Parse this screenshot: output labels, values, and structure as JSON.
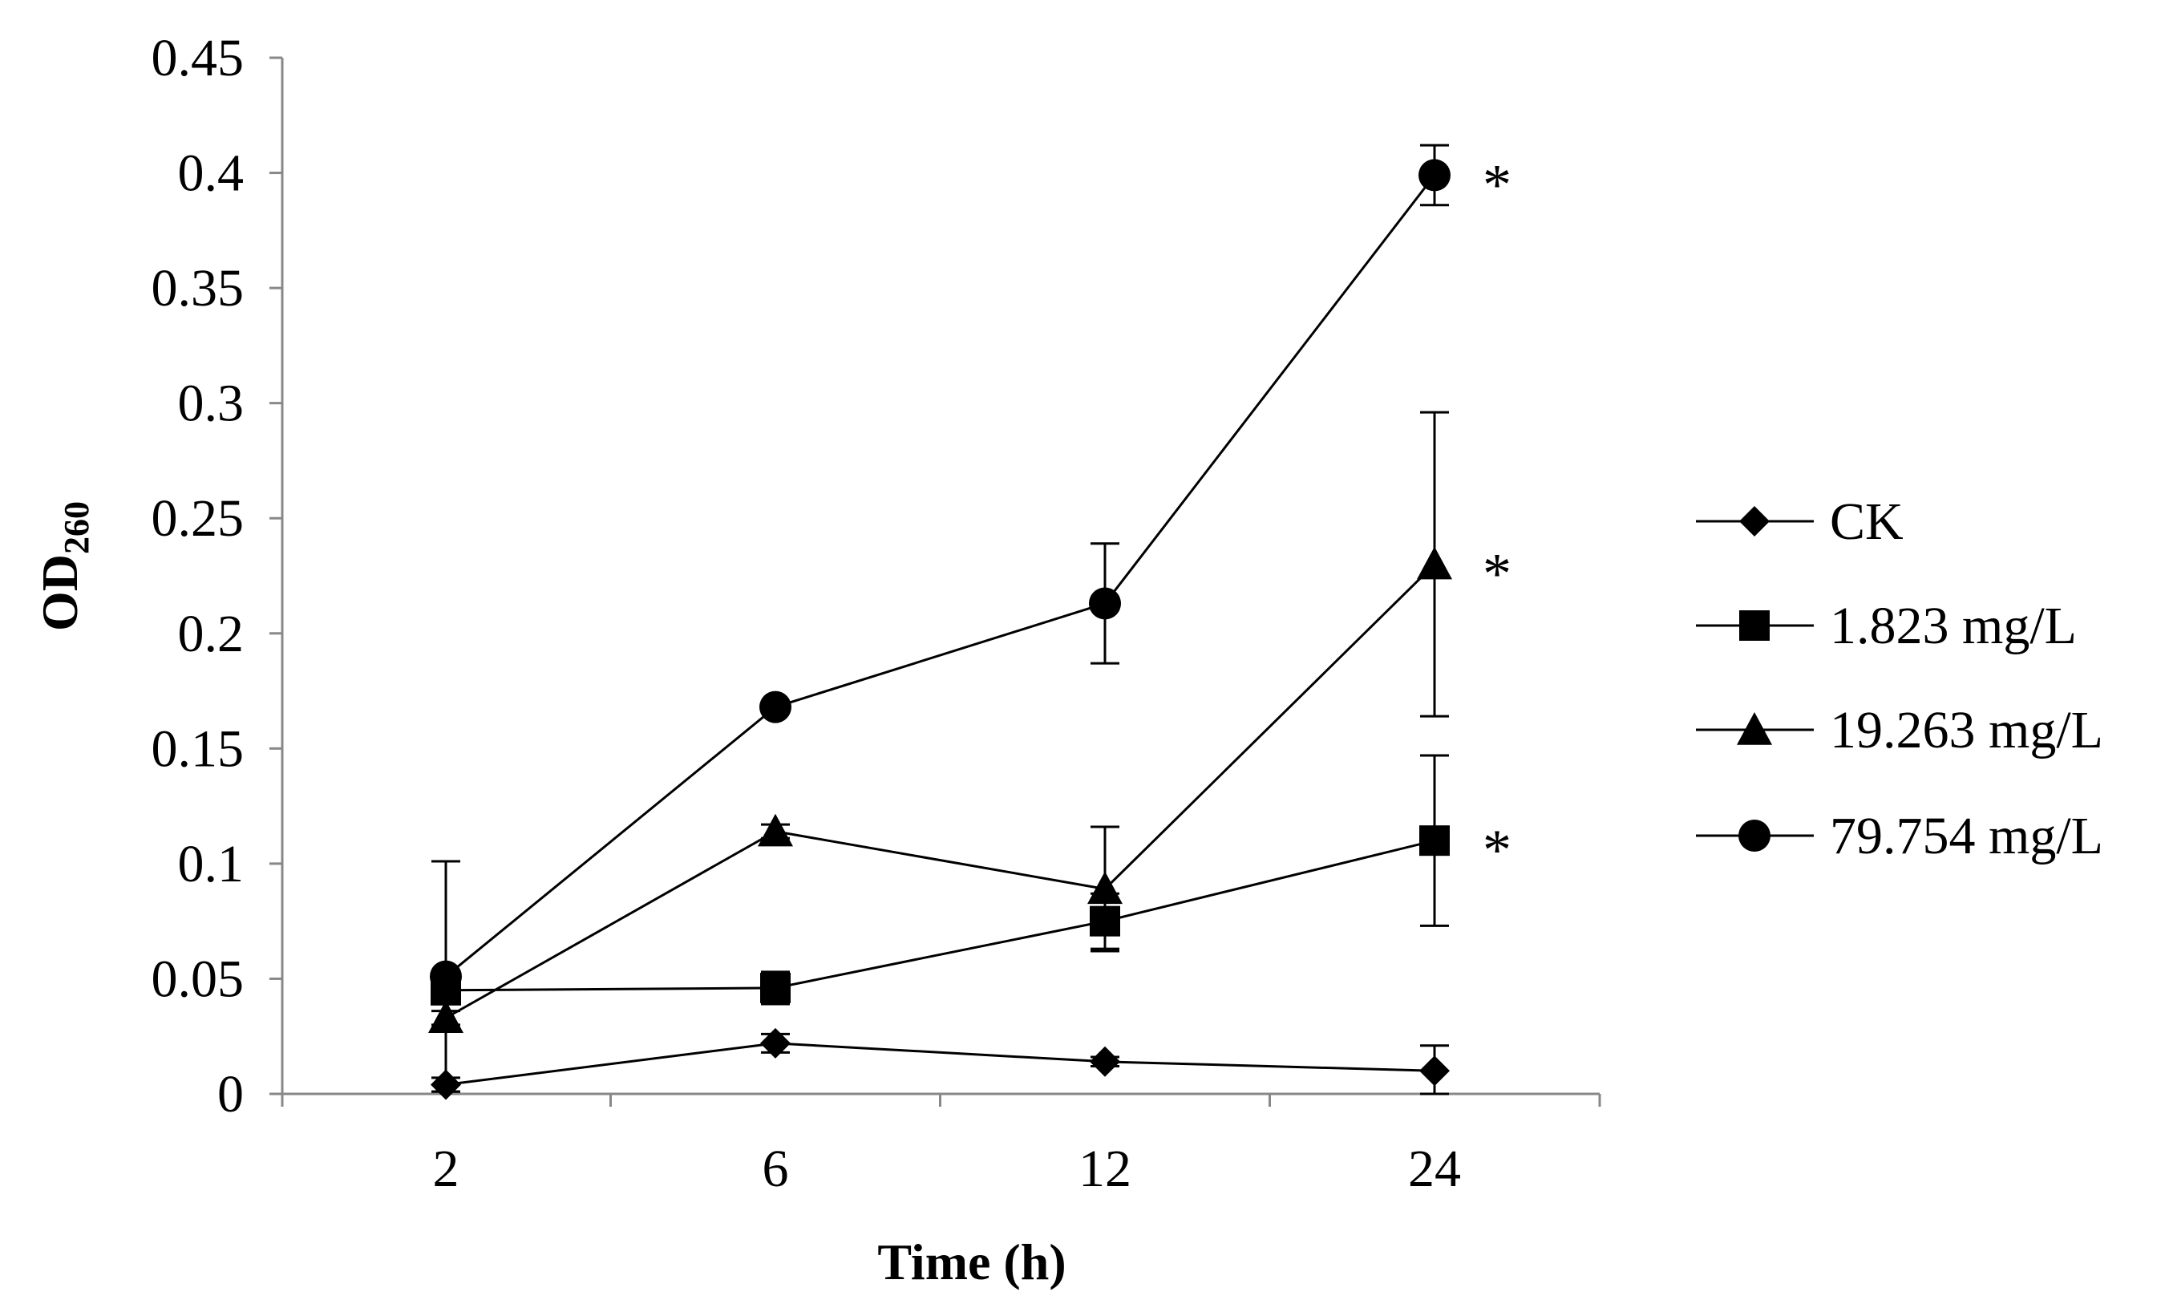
{
  "chart_data": {
    "type": "line",
    "title": "",
    "xlabel": "Time (h)",
    "ylabel_main": "OD",
    "ylabel_sub": "260",
    "categories": [
      "2",
      "6",
      "12",
      "24"
    ],
    "ylim": [
      0,
      0.45
    ],
    "yticks": [
      0,
      0.05,
      0.1,
      0.15,
      0.2,
      0.25,
      0.3,
      0.35,
      0.4,
      0.45
    ],
    "ytick_labels": [
      "0",
      "0.05",
      "0.1",
      "0.15",
      "0.2",
      "0.25",
      "0.3",
      "0.35",
      "0.4",
      "0.45"
    ],
    "grid": false,
    "legend_position": "right",
    "series": [
      {
        "name": "CK",
        "marker": "diamond",
        "values": [
          0.004,
          0.022,
          0.014,
          0.01
        ],
        "errors": [
          0.003,
          0.004,
          0.002,
          0.011
        ],
        "annotation": [
          null,
          null,
          null,
          null
        ]
      },
      {
        "name": "1.823 mg/L",
        "marker": "square",
        "values": [
          0.045,
          0.046,
          0.075,
          0.11
        ],
        "errors": [
          0.005,
          0.007,
          0.012,
          0.037
        ],
        "annotation": [
          null,
          null,
          null,
          "*"
        ]
      },
      {
        "name": "19.263 mg/L",
        "marker": "triangle",
        "values": [
          0.033,
          0.114,
          0.089,
          0.23
        ],
        "errors": [
          0.003,
          0.003,
          0.027,
          0.066
        ],
        "annotation": [
          null,
          null,
          null,
          "*"
        ]
      },
      {
        "name": "79.754 mg/L",
        "marker": "circle",
        "values": [
          0.051,
          0.168,
          0.213,
          0.399
        ],
        "errors": [
          0.05,
          0.002,
          0.026,
          0.013
        ],
        "annotation": [
          null,
          null,
          null,
          "*"
        ]
      }
    ]
  }
}
